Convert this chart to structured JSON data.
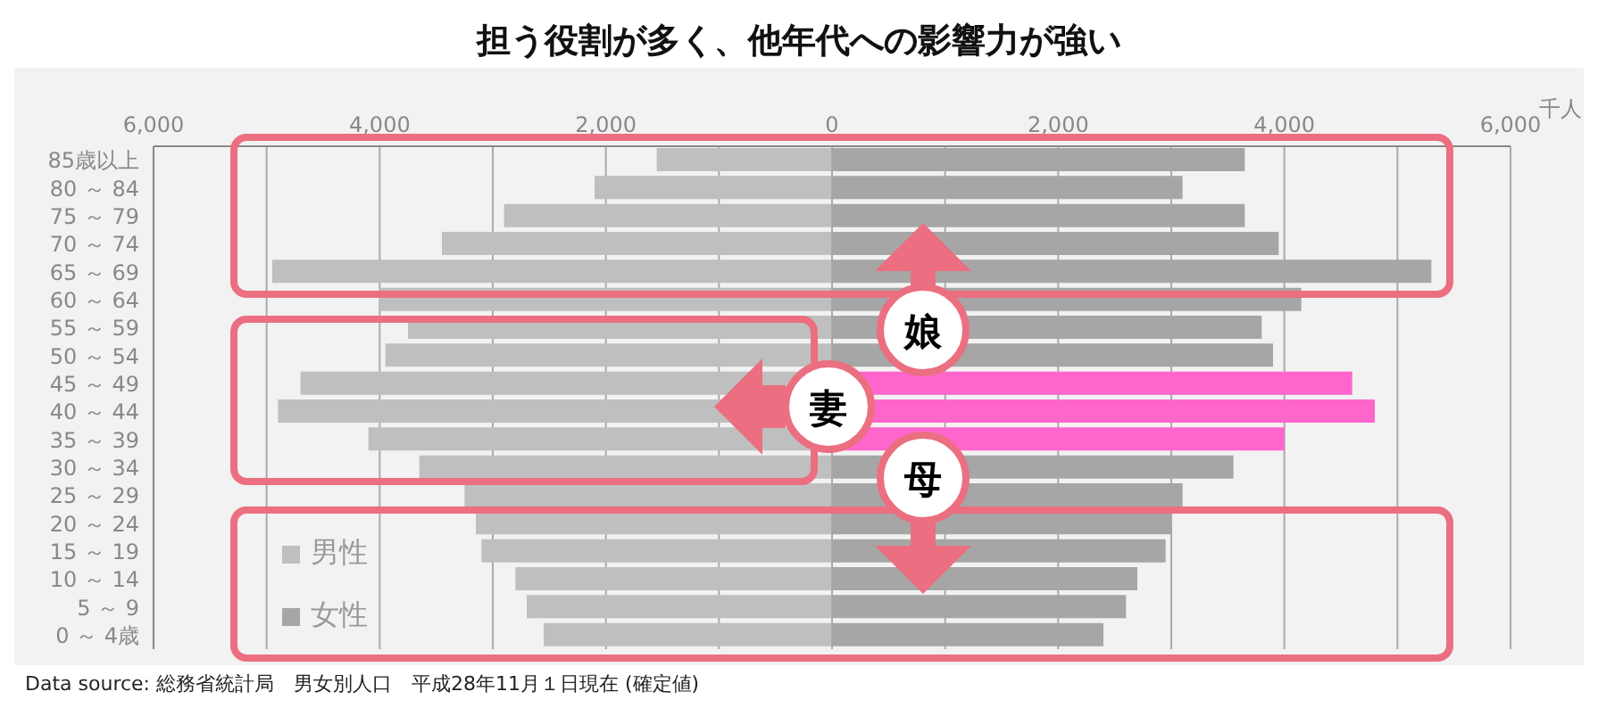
{
  "chart_data": [
    {
      "type": "bar",
      "orientation": "horizontal",
      "title": "担う役割が多く、他年代への影響力が強い",
      "categories": [
        "85歳以上",
        "80 ～ 84",
        "75 ～ 79",
        "70 ～ 74",
        "65 ～ 69",
        "60 ～ 64",
        "55 ～ 59",
        "50 ～ 54",
        "45 ～ 49",
        "40 ～ 44",
        "35 ～ 39",
        "30 ～ 34",
        "25 ～ 29",
        "20 ～ 24",
        "15 ～ 19",
        "10 ～ 14",
        "5 ～ 9",
        "0 ～ 4歳"
      ],
      "series": [
        {
          "name": "男性",
          "color": "#bfbfbf",
          "values": [
            1550,
            2100,
            2900,
            3450,
            4950,
            4000,
            3750,
            3950,
            4700,
            4900,
            4100,
            3650,
            3250,
            3150,
            3100,
            2800,
            2700,
            2550
          ]
        }
      ],
      "xlim": [
        6000,
        0
      ],
      "xticks": [
        {
          "value": 6000,
          "label": "6,000"
        },
        {
          "value": 5000,
          "label": null
        },
        {
          "value": 4000,
          "label": "4,000"
        },
        {
          "value": 3000,
          "label": null
        },
        {
          "value": 2000,
          "label": "2,000"
        },
        {
          "value": 1000,
          "label": null
        }
      ],
      "grid": "x",
      "legend": "bottom left",
      "annotations": [
        "Data source: 総務省統計局　男女別人口　平成28年11月１日現在 (確定値)"
      ]
    },
    {
      "type": "bar",
      "orientation": "horizontal",
      "xlabel": "千人",
      "series": [
        {
          "name": "女性",
          "color": "#a6a6a6",
          "colors": [
            "#a6a6a6",
            "#a6a6a6",
            "#a6a6a6",
            "#a6a6a6",
            "#a6a6a6",
            "#a6a6a6",
            "#a6a6a6",
            "#a6a6a6",
            "#ff66cc",
            "#ff66cc",
            "#ff66cc",
            "#a6a6a6",
            "#a6a6a6",
            "#a6a6a6",
            "#a6a6a6",
            "#a6a6a6",
            "#a6a6a6",
            "#a6a6a6"
          ],
          "values": [
            3650,
            3100,
            3650,
            3950,
            5300,
            4150,
            3800,
            3900,
            4600,
            4800,
            4000,
            3550,
            3100,
            3000,
            2950,
            2700,
            2600,
            2400
          ]
        }
      ],
      "xlim": [
        0,
        6000
      ],
      "xticks": [
        0,
        {
          "value": 1000,
          "label": null
        },
        {
          "value": 2000,
          "label": "2,000"
        },
        {
          "value": 3000,
          "label": null
        },
        {
          "value": 4000,
          "label": "4,000"
        },
        {
          "value": 5000,
          "label": null
        },
        {
          "value": 6000,
          "label": "6,000"
        }
      ],
      "grid": "x",
      "tick_labels": "x",
      "annotations": [
        "娘",
        "妻",
        "母"
      ]
    }
  ]
}
